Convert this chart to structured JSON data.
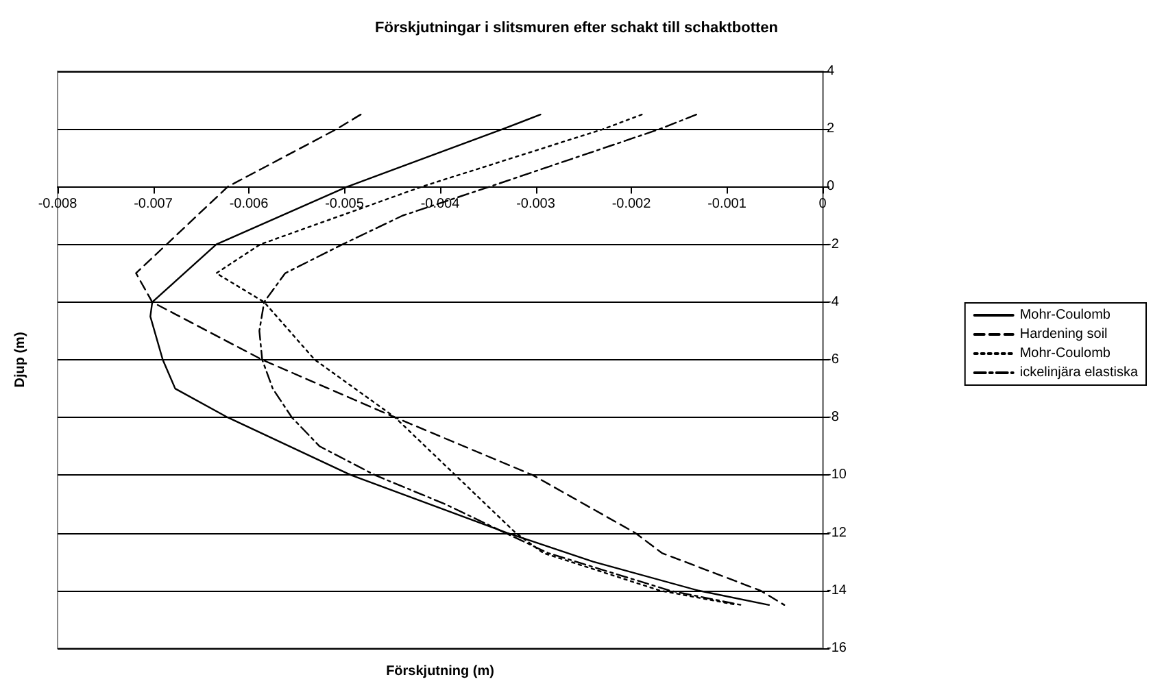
{
  "chart_data": {
    "type": "line",
    "title": "Förskjutningar i slitsmuren efter schakt till schaktbotten",
    "xlabel": "Förskjutning (m)",
    "ylabel": "Djup (m)",
    "xlim": [
      -0.008,
      0
    ],
    "xticks": [
      -0.008,
      -0.007,
      -0.006,
      -0.005,
      -0.004,
      -0.003,
      -0.002,
      -0.001,
      0
    ],
    "ylim": [
      -16,
      4
    ],
    "yticks": [
      -16,
      -14,
      -12,
      -10,
      -8,
      -6,
      -4,
      -2,
      0,
      2,
      4
    ],
    "grid": "y",
    "legend": "right",
    "marker": "none",
    "series": [
      {
        "name": "Mohr-Coulomb",
        "color": "#000000",
        "line_style": "solid",
        "x": [
          -0.00295,
          -0.00334,
          -0.00497,
          -0.00634,
          -0.00701,
          -0.00703,
          -0.0069,
          -0.00677,
          -0.00622,
          -0.00493,
          -0.0033,
          -0.0024,
          -0.0013,
          -0.00056
        ],
        "values": [
          2.5,
          2,
          0,
          -2,
          -4,
          -4.5,
          -6,
          -7,
          -8,
          -10,
          -12,
          -13,
          -14,
          -14.5
        ]
      },
      {
        "name": "Hardening soil",
        "color": "#000000",
        "line_style": "dashed",
        "x": [
          -0.00483,
          -0.00508,
          -0.00622,
          -0.00718,
          -0.00701,
          -0.00586,
          -0.00447,
          -0.00303,
          -0.00196,
          -0.00168,
          -0.00065,
          -0.0004
        ],
        "values": [
          2.5,
          2,
          0,
          -3,
          -4,
          -6,
          -8,
          -10,
          -12,
          -12.7,
          -14,
          -14.5
        ]
      },
      {
        "name": "Mohr-Coulomb",
        "color": "#000000",
        "line_style": "dotted",
        "x": [
          -0.00189,
          -0.00229,
          -0.00419,
          -0.00588,
          -0.00634,
          -0.00584,
          -0.00531,
          -0.00447,
          -0.00384,
          -0.00321,
          -0.00292,
          -0.0017,
          -0.00089
        ],
        "values": [
          2.5,
          2,
          0,
          -2,
          -3,
          -4,
          -6,
          -8,
          -10,
          -12,
          -12.7,
          -14,
          -14.5
        ]
      },
      {
        "name": "ickelinjära elastiska",
        "color": "#000000",
        "line_style": "dashdot",
        "x": [
          -0.00132,
          -0.0017,
          -0.00348,
          -0.00439,
          -0.00502,
          -0.00562,
          -0.00584,
          -0.00589,
          -0.00586,
          -0.00575,
          -0.00555,
          -0.00526,
          -0.00468,
          -0.00395,
          -0.00332,
          -0.00287,
          -0.0016,
          -0.00085
        ],
        "values": [
          2.5,
          2,
          0,
          -1,
          -2,
          -3,
          -4,
          -5,
          -6,
          -7,
          -8,
          -9,
          -10,
          -11,
          -12,
          -12.7,
          -14,
          -14.5
        ]
      }
    ]
  }
}
